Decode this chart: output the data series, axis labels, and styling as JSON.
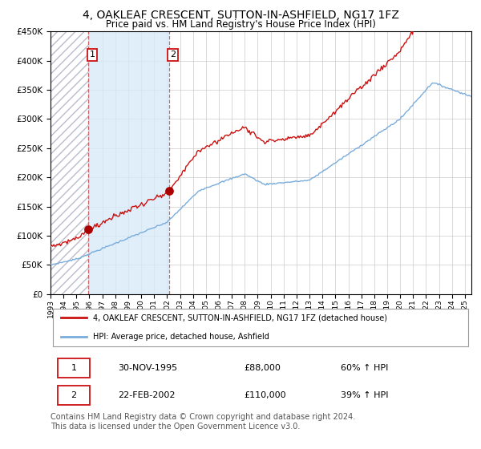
{
  "title": "4, OAKLEAF CRESCENT, SUTTON-IN-ASHFIELD, NG17 1FZ",
  "subtitle": "Price paid vs. HM Land Registry's House Price Index (HPI)",
  "title_fontsize": 10,
  "subtitle_fontsize": 8.5,
  "sale1_date_num": 1995.916,
  "sale1_price": 88000,
  "sale2_date_num": 2002.14,
  "sale2_price": 110000,
  "hpi_line_color": "#7aaddc",
  "price_line_color": "#cc1111",
  "dot_color": "#aa0000",
  "vline_color": "#cc4444",
  "shade_color": "#d8eaf8",
  "ylim": [
    0,
    450000
  ],
  "xlim_start": 1993.0,
  "xlim_end": 2025.5,
  "yticks": [
    0,
    50000,
    100000,
    150000,
    200000,
    250000,
    300000,
    350000,
    400000,
    450000
  ],
  "legend_label_red": "4, OAKLEAF CRESCENT, SUTTON-IN-ASHFIELD, NG17 1FZ (detached house)",
  "legend_label_blue": "HPI: Average price, detached house, Ashfield",
  "footnote": "Contains HM Land Registry data © Crown copyright and database right 2024.\nThis data is licensed under the Open Government Licence v3.0.",
  "footnote_fontsize": 7,
  "table_row1": [
    "1",
    "30-NOV-1995",
    "£88,000",
    "60% ↑ HPI"
  ],
  "table_row2": [
    "2",
    "22-FEB-2002",
    "£110,000",
    "39% ↑ HPI"
  ]
}
